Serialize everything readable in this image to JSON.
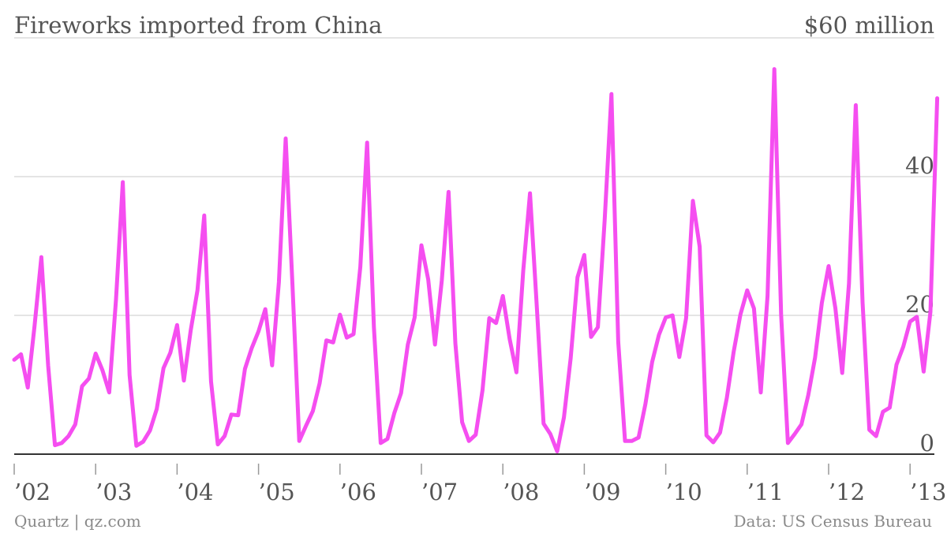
{
  "header": {
    "title": "Fireworks imported from China",
    "top_label": "$60 million"
  },
  "footer": {
    "left": "Quartz | qz.com",
    "right": "Data: US Census Bureau"
  },
  "colors": {
    "line": "#f54ef0",
    "grid": "#dcdcdc",
    "text": "#555555"
  },
  "chart_data": {
    "type": "line",
    "title": "Fireworks imported from China",
    "unit": "$ million",
    "xlabel": "",
    "ylabel": "",
    "ylim": [
      0,
      60
    ],
    "yticks": [
      0,
      20,
      40
    ],
    "xticks": [
      "’02",
      "’03",
      "’04",
      "’05",
      "’06",
      "’07",
      "’08",
      "’09",
      "’10",
      "’11",
      "’12",
      "’13"
    ],
    "grid": true,
    "legend": "none",
    "x_start": "2002-01",
    "frequency": "monthly",
    "series": [
      {
        "values": [
          13.6,
          14.4,
          9.6,
          18.5,
          28.4,
          12.8,
          1.3,
          1.6,
          2.6,
          4.3,
          9.8,
          10.9,
          14.5,
          12.1,
          8.9,
          22.3,
          39.2,
          11.4,
          1.2,
          1.8,
          3.4,
          6.5,
          12.4,
          14.6,
          18.6,
          10.6,
          17.8,
          23.6,
          34.4,
          10.5,
          1.4,
          2.6,
          5.7,
          5.6,
          12.3,
          15.3,
          17.7,
          20.9,
          12.8,
          24.8,
          45.5,
          24.4,
          1.9,
          4.1,
          6.2,
          10.2,
          16.4,
          16.1,
          20.1,
          16.8,
          17.3,
          27.0,
          44.9,
          18.3,
          1.6,
          2.2,
          5.9,
          8.8,
          15.8,
          19.7,
          30.1,
          25.2,
          15.8,
          25.0,
          37.8,
          16.0,
          4.6,
          1.9,
          2.8,
          9.2,
          19.6,
          18.9,
          22.8,
          16.6,
          11.8,
          26.4,
          37.6,
          21.3,
          4.4,
          2.9,
          0.4,
          5.3,
          13.9,
          25.5,
          28.7,
          16.9,
          18.3,
          33.7,
          51.9,
          16.2,
          1.9,
          1.9,
          2.4,
          7.2,
          13.3,
          17.2,
          19.7,
          20.0,
          14.0,
          19.6,
          36.5,
          29.9,
          2.7,
          1.7,
          3.1,
          8.1,
          14.7,
          20.1,
          23.6,
          21.0,
          8.9,
          22.8,
          55.5,
          20.1,
          1.6,
          2.9,
          4.3,
          8.5,
          13.9,
          21.8,
          27.1,
          21.0,
          11.7,
          24.6,
          50.3,
          21.9,
          3.5,
          2.6,
          6.1,
          6.7,
          12.9,
          15.5,
          19.1,
          19.8,
          11.9,
          20.5,
          51.3
        ]
      }
    ]
  }
}
